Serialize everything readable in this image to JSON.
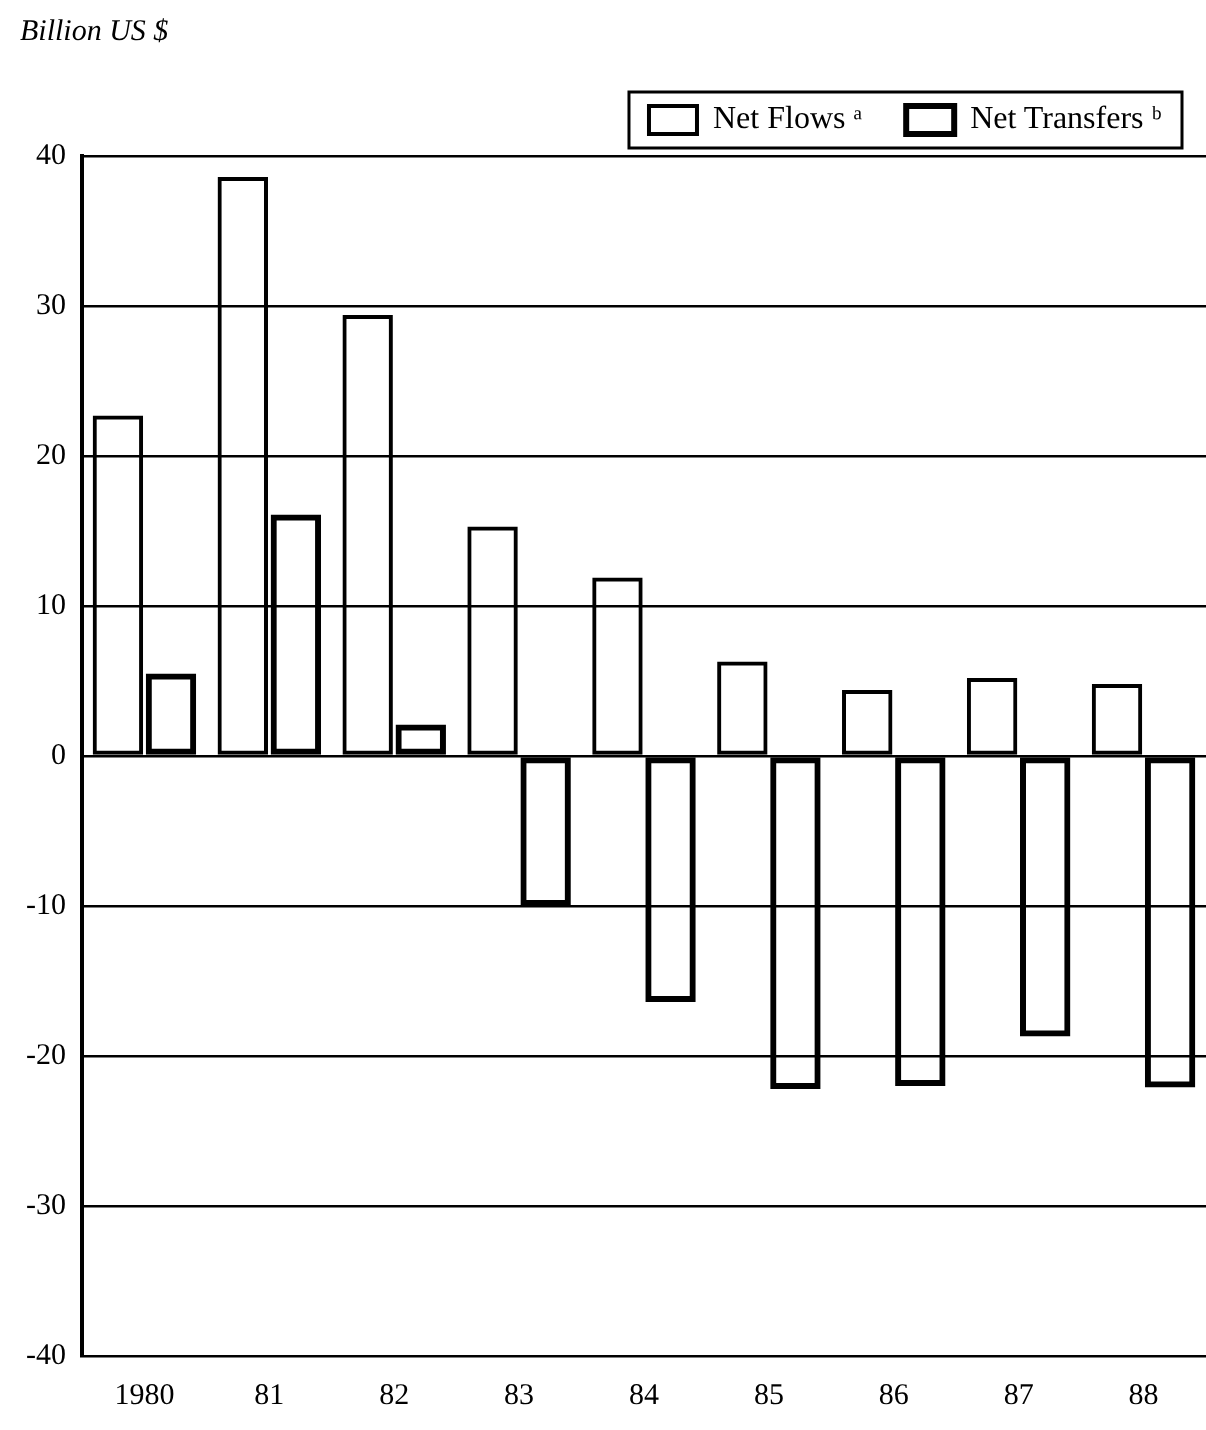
{
  "chart_data": {
    "type": "bar",
    "ylabel": "Billion US $",
    "categories": [
      "1980",
      "81",
      "82",
      "83",
      "84",
      "85",
      "86",
      "87",
      "88"
    ],
    "series": [
      {
        "name": "Net Flows ᵃ",
        "color": "#000000",
        "values": [
          22.7,
          38.6,
          29.4,
          15.3,
          11.9,
          6.3,
          4.4,
          5.2,
          4.8
        ]
      },
      {
        "name": "Net Transfers ᵇ",
        "color": "#000000",
        "values": [
          5.5,
          16.1,
          2.1,
          -10,
          -16.4,
          -22.2,
          -22,
          -18.7,
          -22.1
        ]
      }
    ],
    "ylim": [
      -40,
      40
    ],
    "yticks": [
      -40,
      -30,
      -20,
      -10,
      0,
      10,
      20,
      30,
      40
    ],
    "grid": "y",
    "legend": "top right"
  }
}
